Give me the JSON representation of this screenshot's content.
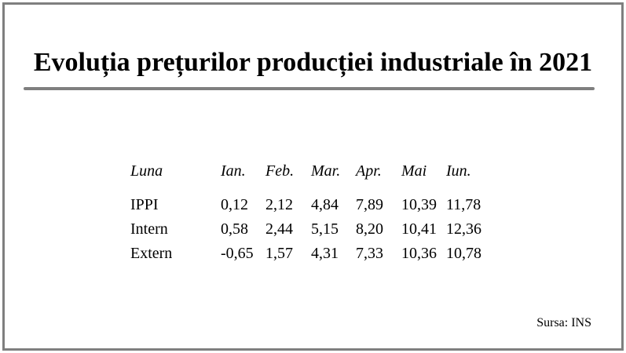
{
  "title": "Evoluția prețurilor producției industriale în 2021",
  "table": {
    "header": {
      "label": "Luna",
      "months": [
        "Ian.",
        "Feb.",
        "Mar.",
        "Apr.",
        "Mai",
        "Iun."
      ]
    },
    "rows": [
      {
        "label": "IPPI",
        "values": [
          "0,12",
          "2,12",
          "4,84",
          "7,89",
          "10,39",
          "11,78"
        ]
      },
      {
        "label": "Intern",
        "values": [
          "0,58",
          "2,44",
          "5,15",
          "8,20",
          "10,41",
          "12,36"
        ]
      },
      {
        "label": "Extern",
        "values": [
          "-0,65",
          "1,57",
          "4,31",
          "7,33",
          "10,36",
          "10,78"
        ]
      }
    ]
  },
  "source": "Sursa: INS",
  "colors": {
    "border": "#7f7f7f",
    "rule": "#7f7f7f",
    "text": "#000000",
    "background": "#ffffff"
  }
}
